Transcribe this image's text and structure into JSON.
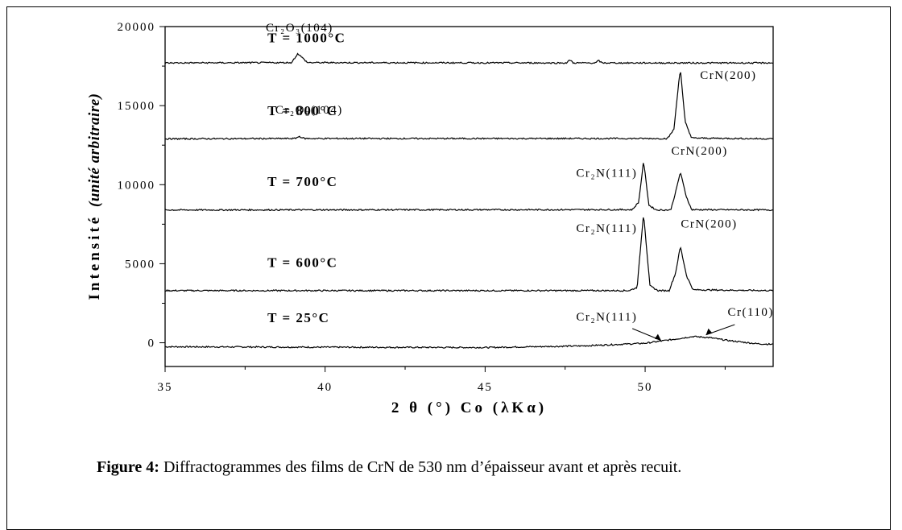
{
  "chart_data": {
    "type": "line",
    "title": "",
    "xlabel": "2 θ (°) Co (λKα)",
    "ylabel_main": "Intensité",
    "ylabel_italic": "(unité arbitraire)",
    "xlim": [
      35,
      54
    ],
    "ylim": [
      -1500,
      20000
    ],
    "xticks": [
      35,
      40,
      45,
      50
    ],
    "yticks": [
      0,
      5000,
      10000,
      15000,
      20000
    ],
    "tick_labels_x": [
      "35",
      "40",
      "45",
      "50"
    ],
    "tick_labels_y": [
      "0",
      "5000",
      "10000",
      "15000",
      "20000"
    ],
    "series": [
      {
        "name": "T = 25°C",
        "baseline": -200,
        "points": [
          [
            35,
            -250
          ],
          [
            40,
            -280
          ],
          [
            45,
            -300
          ],
          [
            48,
            -200
          ],
          [
            50,
            -30
          ],
          [
            51,
            250
          ],
          [
            51.5,
            400
          ],
          [
            52,
            330
          ],
          [
            52.5,
            170
          ],
          [
            53,
            50
          ],
          [
            53.5,
            -60
          ],
          [
            54,
            -100
          ]
        ]
      },
      {
        "name": "T = 600°C",
        "baseline": 3300,
        "points": [
          [
            35,
            3300
          ],
          [
            49.5,
            3300
          ],
          [
            49.75,
            3500
          ],
          [
            49.95,
            8200
          ],
          [
            50.15,
            3600
          ],
          [
            50.4,
            3300
          ],
          [
            50.75,
            3300
          ],
          [
            50.95,
            4400
          ],
          [
            51.1,
            6100
          ],
          [
            51.3,
            4200
          ],
          [
            51.5,
            3350
          ],
          [
            54,
            3300
          ]
        ]
      },
      {
        "name": "T = 700°C",
        "baseline": 8400,
        "points": [
          [
            35,
            8400
          ],
          [
            49.6,
            8420
          ],
          [
            49.8,
            8900
          ],
          [
            49.95,
            11500
          ],
          [
            50.12,
            8700
          ],
          [
            50.35,
            8400
          ],
          [
            50.8,
            8400
          ],
          [
            50.95,
            9500
          ],
          [
            51.1,
            10800
          ],
          [
            51.28,
            9300
          ],
          [
            51.45,
            8420
          ],
          [
            54,
            8400
          ]
        ]
      },
      {
        "name": "T = 800°C",
        "baseline": 12900,
        "points": [
          [
            35,
            12900
          ],
          [
            39.05,
            12920
          ],
          [
            39.2,
            13050
          ],
          [
            39.35,
            12920
          ],
          [
            50.7,
            12920
          ],
          [
            50.9,
            13500
          ],
          [
            51.05,
            16500
          ],
          [
            51.1,
            17300
          ],
          [
            51.25,
            14000
          ],
          [
            51.45,
            12950
          ],
          [
            54,
            12900
          ]
        ]
      },
      {
        "name": "T = 1000°C",
        "baseline": 17700,
        "points": [
          [
            35,
            17700
          ],
          [
            38.95,
            17720
          ],
          [
            39.15,
            18300
          ],
          [
            39.3,
            18000
          ],
          [
            39.45,
            17720
          ],
          [
            47.55,
            17700
          ],
          [
            47.65,
            17900
          ],
          [
            47.75,
            17700
          ],
          [
            48.45,
            17700
          ],
          [
            48.55,
            17850
          ],
          [
            48.65,
            17700
          ],
          [
            54,
            17700
          ]
        ]
      }
    ],
    "annotations": [
      {
        "text": "Cr₂O₃(104)",
        "x": 39.2,
        "y": 19700
      },
      {
        "text": "Cr₂O₃(104)",
        "x": 39.5,
        "y": 14500
      },
      {
        "text": "CrN(200)",
        "x": 52.6,
        "y": 16700
      },
      {
        "text": "CrN(200)",
        "x": 51.7,
        "y": 11900
      },
      {
        "text": "Cr₂N(111)",
        "x": 48.8,
        "y": 10500
      },
      {
        "text": "CrN(200)",
        "x": 52.0,
        "y": 7300
      },
      {
        "text": "Cr₂N(111)",
        "x": 48.8,
        "y": 7000
      },
      {
        "text": "Cr₂N(111)",
        "x": 48.8,
        "y": 1400
      },
      {
        "text": "Cr(110)",
        "x": 53.3,
        "y": 1700
      }
    ],
    "legend": "inline"
  },
  "caption": {
    "label": "Figure 4:",
    "text": " Diffractogrammes des films de CrN de 530 nm d’épaisseur avant et après recuit."
  }
}
